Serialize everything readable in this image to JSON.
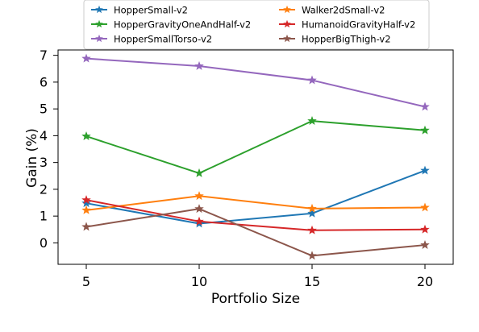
{
  "chart_data": {
    "type": "line",
    "title": "",
    "xlabel": "Portfolio Size",
    "ylabel": "Gain (%)",
    "x": [
      5,
      10,
      15,
      20
    ],
    "xlim": [
      3.75,
      21.25
    ],
    "ylim": [
      -0.8,
      7.2
    ],
    "xticks": [
      "5",
      "10",
      "15",
      "20"
    ],
    "yticks": [
      "0",
      "1",
      "2",
      "3",
      "4",
      "5",
      "6",
      "7"
    ],
    "legend_position": "top-center",
    "grid": false,
    "series": [
      {
        "name": "HopperSmall-v2",
        "color": "#1f77b4",
        "values": [
          1.48,
          0.72,
          1.1,
          2.7
        ]
      },
      {
        "name": "Walker2dSmall-v2",
        "color": "#ff7f0e",
        "values": [
          1.22,
          1.75,
          1.28,
          1.32
        ]
      },
      {
        "name": "HopperGravityOneAndHalf-v2",
        "color": "#2ca02c",
        "values": [
          3.98,
          2.6,
          4.55,
          4.2
        ]
      },
      {
        "name": "HumanoidGravityHalf-v2",
        "color": "#d62728",
        "values": [
          1.6,
          0.8,
          0.47,
          0.5
        ]
      },
      {
        "name": "HopperSmallTorso-v2",
        "color": "#9467bd",
        "values": [
          6.88,
          6.6,
          6.07,
          5.08
        ]
      },
      {
        "name": "HopperBigThigh-v2",
        "color": "#8c564b",
        "values": [
          0.6,
          1.27,
          -0.48,
          -0.08
        ]
      }
    ]
  }
}
